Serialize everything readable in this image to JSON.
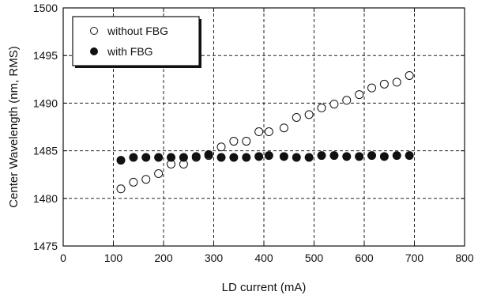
{
  "chart_data": {
    "type": "scatter",
    "title": "",
    "xlabel": "LD current (mA)",
    "ylabel": "Center Wavelength (nm, RMS)",
    "xlim": [
      0,
      800
    ],
    "ylim": [
      1475,
      1500
    ],
    "xticks": [
      0,
      100,
      200,
      300,
      400,
      500,
      600,
      700,
      800
    ],
    "yticks": [
      1475,
      1480,
      1485,
      1490,
      1495,
      1500
    ],
    "grid": true,
    "legend_position": "top-left",
    "series": [
      {
        "name": "without FBG",
        "marker": "open-circle",
        "color": "#111111",
        "points": [
          [
            115,
            1481.0
          ],
          [
            140,
            1481.7
          ],
          [
            165,
            1482.0
          ],
          [
            190,
            1482.6
          ],
          [
            215,
            1483.6
          ],
          [
            240,
            1483.6
          ],
          [
            265,
            1484.3
          ],
          [
            290,
            1484.5
          ],
          [
            315,
            1485.4
          ],
          [
            340,
            1486.0
          ],
          [
            365,
            1486.0
          ],
          [
            390,
            1487.0
          ],
          [
            410,
            1487.0
          ],
          [
            440,
            1487.4
          ],
          [
            465,
            1488.5
          ],
          [
            490,
            1488.8
          ],
          [
            515,
            1489.5
          ],
          [
            540,
            1489.9
          ],
          [
            565,
            1490.3
          ],
          [
            590,
            1490.9
          ],
          [
            615,
            1491.6
          ],
          [
            640,
            1492.0
          ],
          [
            665,
            1492.2
          ],
          [
            690,
            1492.9
          ]
        ]
      },
      {
        "name": "with FBG",
        "marker": "filled-circle",
        "color": "#111111",
        "points": [
          [
            115,
            1484.0
          ],
          [
            140,
            1484.3
          ],
          [
            165,
            1484.3
          ],
          [
            190,
            1484.3
          ],
          [
            215,
            1484.3
          ],
          [
            240,
            1484.3
          ],
          [
            265,
            1484.4
          ],
          [
            290,
            1484.6
          ],
          [
            315,
            1484.3
          ],
          [
            340,
            1484.3
          ],
          [
            365,
            1484.3
          ],
          [
            390,
            1484.4
          ],
          [
            410,
            1484.5
          ],
          [
            440,
            1484.4
          ],
          [
            465,
            1484.3
          ],
          [
            490,
            1484.3
          ],
          [
            515,
            1484.5
          ],
          [
            540,
            1484.5
          ],
          [
            565,
            1484.4
          ],
          [
            590,
            1484.4
          ],
          [
            615,
            1484.5
          ],
          [
            640,
            1484.4
          ],
          [
            665,
            1484.5
          ],
          [
            690,
            1484.5
          ]
        ]
      }
    ]
  }
}
